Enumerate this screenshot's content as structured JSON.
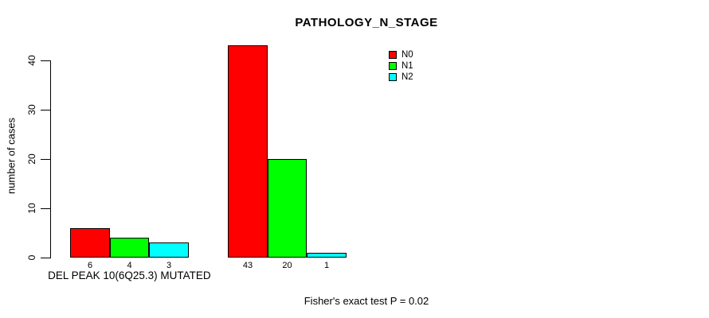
{
  "chart_data": {
    "type": "bar",
    "title": "PATHOLOGY_N_STAGE",
    "ylabel": "number of cases",
    "xlabel": "DEL PEAK 10(6Q25.3) MUTATED",
    "yticks": [
      0,
      10,
      20,
      30,
      40
    ],
    "ylim": [
      0,
      43
    ],
    "grid": false,
    "legend_position": "upper-right",
    "series": [
      {
        "name": "N0",
        "color": "#ff0000",
        "values": [
          6,
          43
        ]
      },
      {
        "name": "N1",
        "color": "#00ff00",
        "values": [
          4,
          20
        ]
      },
      {
        "name": "N2",
        "color": "#00ffff",
        "values": [
          3,
          1
        ]
      }
    ],
    "groups": [
      {
        "category": "DEL PEAK 10(6Q25.3) MUTATED",
        "bar_labels": [
          "6",
          "4",
          "3"
        ]
      },
      {
        "category": "",
        "bar_labels": [
          "43",
          "20",
          "1"
        ]
      }
    ],
    "annotation": "Fisher's exact test P = 0.02",
    "colors": {
      "axis": "#000000",
      "background": "#ffffff",
      "bar_border": "#000000"
    }
  }
}
